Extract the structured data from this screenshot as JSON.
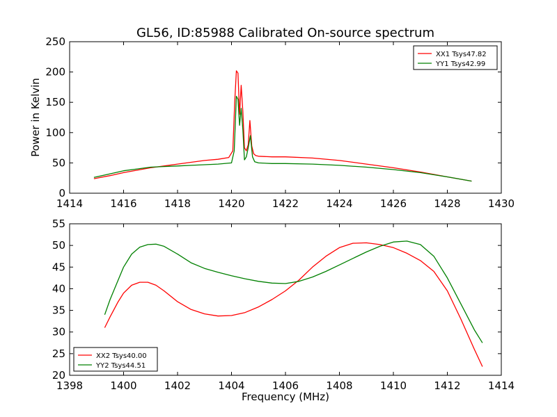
{
  "figure": {
    "title": "GL56, ID:85988 Calibrated On-source spectrum",
    "xlabel": "Frequency (MHz)"
  },
  "colors": {
    "red": "#ff0000",
    "green": "#008000"
  },
  "chart_data": [
    {
      "type": "line",
      "ylabel": "Power in Kelvin",
      "xlim": [
        1414,
        1430
      ],
      "ylim": [
        0,
        250
      ],
      "xticks": [
        1414,
        1416,
        1418,
        1420,
        1422,
        1424,
        1426,
        1428,
        1430
      ],
      "yticks": [
        0,
        50,
        100,
        150,
        200,
        250
      ],
      "legend_position": "top-right",
      "series": [
        {
          "name": "XX1 Tsys47.82",
          "color": "#ff0000",
          "x": [
            1414.9,
            1415.5,
            1416.0,
            1416.5,
            1417.0,
            1417.5,
            1418.0,
            1418.5,
            1419.0,
            1419.5,
            1419.9,
            1420.05,
            1420.12,
            1420.18,
            1420.24,
            1420.3,
            1420.36,
            1420.42,
            1420.48,
            1420.55,
            1420.62,
            1420.68,
            1420.75,
            1420.82,
            1420.9,
            1421.0,
            1421.5,
            1422.0,
            1423.0,
            1424.0,
            1425.0,
            1426.0,
            1427.0,
            1428.0,
            1428.9
          ],
          "y": [
            24,
            29,
            34,
            38,
            42,
            45,
            48,
            51,
            54,
            56,
            59,
            70,
            150,
            202,
            198,
            130,
            178,
            135,
            75,
            70,
            80,
            120,
            78,
            65,
            62,
            61,
            60,
            60,
            58,
            54,
            48,
            42,
            35,
            27,
            20
          ]
        },
        {
          "name": "YY1 Tsys42.99",
          "color": "#008000",
          "x": [
            1414.9,
            1415.5,
            1416.0,
            1416.5,
            1417.0,
            1417.5,
            1418.0,
            1418.5,
            1419.0,
            1419.5,
            1420.0,
            1420.1,
            1420.18,
            1420.24,
            1420.3,
            1420.36,
            1420.42,
            1420.48,
            1420.55,
            1420.62,
            1420.7,
            1420.78,
            1420.86,
            1421.0,
            1421.5,
            1422.0,
            1423.0,
            1424.0,
            1425.0,
            1426.0,
            1427.0,
            1428.0,
            1428.9
          ],
          "y": [
            26,
            32,
            37,
            40,
            43,
            44,
            45,
            46,
            47,
            48,
            50,
            70,
            160,
            155,
            112,
            140,
            105,
            55,
            60,
            75,
            95,
            60,
            52,
            50,
            49,
            49,
            48,
            46,
            43,
            39,
            34,
            27,
            20
          ]
        }
      ]
    },
    {
      "type": "line",
      "ylabel": "",
      "xlim": [
        1398,
        1414
      ],
      "ylim": [
        20,
        55
      ],
      "xticks": [
        1398,
        1400,
        1402,
        1404,
        1406,
        1408,
        1410,
        1412,
        1414
      ],
      "yticks": [
        20,
        25,
        30,
        35,
        40,
        45,
        50,
        55
      ],
      "legend_position": "bottom-left",
      "series": [
        {
          "name": "XX2 Tsys40.00",
          "color": "#ff0000",
          "x": [
            1399.3,
            1399.5,
            1399.8,
            1400.0,
            1400.3,
            1400.6,
            1400.9,
            1401.2,
            1401.5,
            1402.0,
            1402.5,
            1403.0,
            1403.5,
            1404.0,
            1404.5,
            1405.0,
            1405.5,
            1406.0,
            1406.5,
            1407.0,
            1407.5,
            1408.0,
            1408.5,
            1409.0,
            1409.5,
            1410.0,
            1410.5,
            1411.0,
            1411.5,
            1412.0,
            1412.5,
            1413.0,
            1413.3
          ],
          "y": [
            31,
            33.5,
            37,
            39,
            40.8,
            41.5,
            41.5,
            40.8,
            39.5,
            37,
            35.2,
            34.2,
            33.7,
            33.8,
            34.5,
            35.8,
            37.5,
            39.5,
            42,
            45,
            47.5,
            49.5,
            50.5,
            50.6,
            50.2,
            49.5,
            48.2,
            46.5,
            44,
            39.5,
            33,
            26,
            22
          ]
        },
        {
          "name": "YY2 Tsys44.51",
          "color": "#008000",
          "x": [
            1399.3,
            1399.5,
            1399.8,
            1400.0,
            1400.3,
            1400.6,
            1400.9,
            1401.2,
            1401.5,
            1402.0,
            1402.5,
            1403.0,
            1403.5,
            1404.0,
            1404.5,
            1405.0,
            1405.5,
            1406.0,
            1406.5,
            1407.0,
            1407.5,
            1408.0,
            1408.5,
            1409.0,
            1409.5,
            1410.0,
            1410.5,
            1411.0,
            1411.5,
            1412.0,
            1412.5,
            1413.0,
            1413.3
          ],
          "y": [
            34,
            37.5,
            42,
            45,
            48,
            49.6,
            50.2,
            50.3,
            49.8,
            48,
            46,
            44.7,
            43.8,
            43,
            42.3,
            41.7,
            41.3,
            41.2,
            41.7,
            42.7,
            44,
            45.5,
            47,
            48.5,
            49.8,
            50.8,
            51,
            50.2,
            47.5,
            42.5,
            36.5,
            30.5,
            27.5
          ]
        }
      ]
    }
  ]
}
